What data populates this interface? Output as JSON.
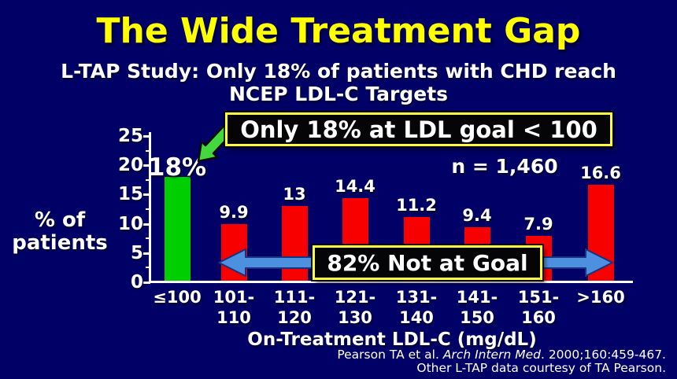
{
  "slide": {
    "title": "The Wide Treatment Gap",
    "subtitle": "L-TAP Study: Only 18% of patients with CHD reach\nNCEP LDL-C Targets",
    "colors": {
      "background": "#000066",
      "title_yellow": "#FFFF00",
      "bar_red": "#F80000",
      "bar_green": "#00CE00",
      "box_border_yellow": "#FFFF42",
      "box_background": "#050508",
      "arrow_blue": "#4E90E0",
      "arrow_blue_outline": "#17337F",
      "arrow_green": "#44D83F",
      "text_white": "#FFFFFF"
    }
  },
  "chart_data": {
    "type": "bar",
    "title": "",
    "categories": [
      "≤100",
      "101-110",
      "111-120",
      "121-130",
      "131-140",
      "141-150",
      "151-160",
      ">160"
    ],
    "tick_labels_display": [
      "≤100",
      "101-\n110",
      "111-\n120",
      "121-\n130",
      "131-\n140",
      "141-\n150",
      "151-\n160",
      ">160"
    ],
    "values": [
      18,
      9.9,
      13,
      14.4,
      11.2,
      9.4,
      7.9,
      16.6
    ],
    "bar_labels": [
      "18%",
      "9.9",
      "13",
      "14.4",
      "11.2",
      "9.4",
      "7.9",
      "16.6"
    ],
    "bar_colors": [
      "green",
      "red",
      "red",
      "red",
      "red",
      "red",
      "red",
      "red"
    ],
    "xlabel": "On-Treatment LDL-C (mg/dL)",
    "ylabel": "% of\npatients",
    "ylim": [
      0,
      25
    ],
    "yticks": [
      0,
      5,
      10,
      15,
      20,
      25
    ],
    "grid": false,
    "legend": "none"
  },
  "annotations": {
    "callout_goal": "Only 18% at LDL goal < 100",
    "n_label": "n = 1,460",
    "not_at_goal": "82% Not at Goal"
  },
  "footer": {
    "line1_prefix": "Pearson TA et al. ",
    "line1_italic": "Arch Intern Med",
    "line1_suffix": ". 2000;160:459-467.",
    "line2": "Other L-TAP data courtesy of TA Pearson."
  }
}
